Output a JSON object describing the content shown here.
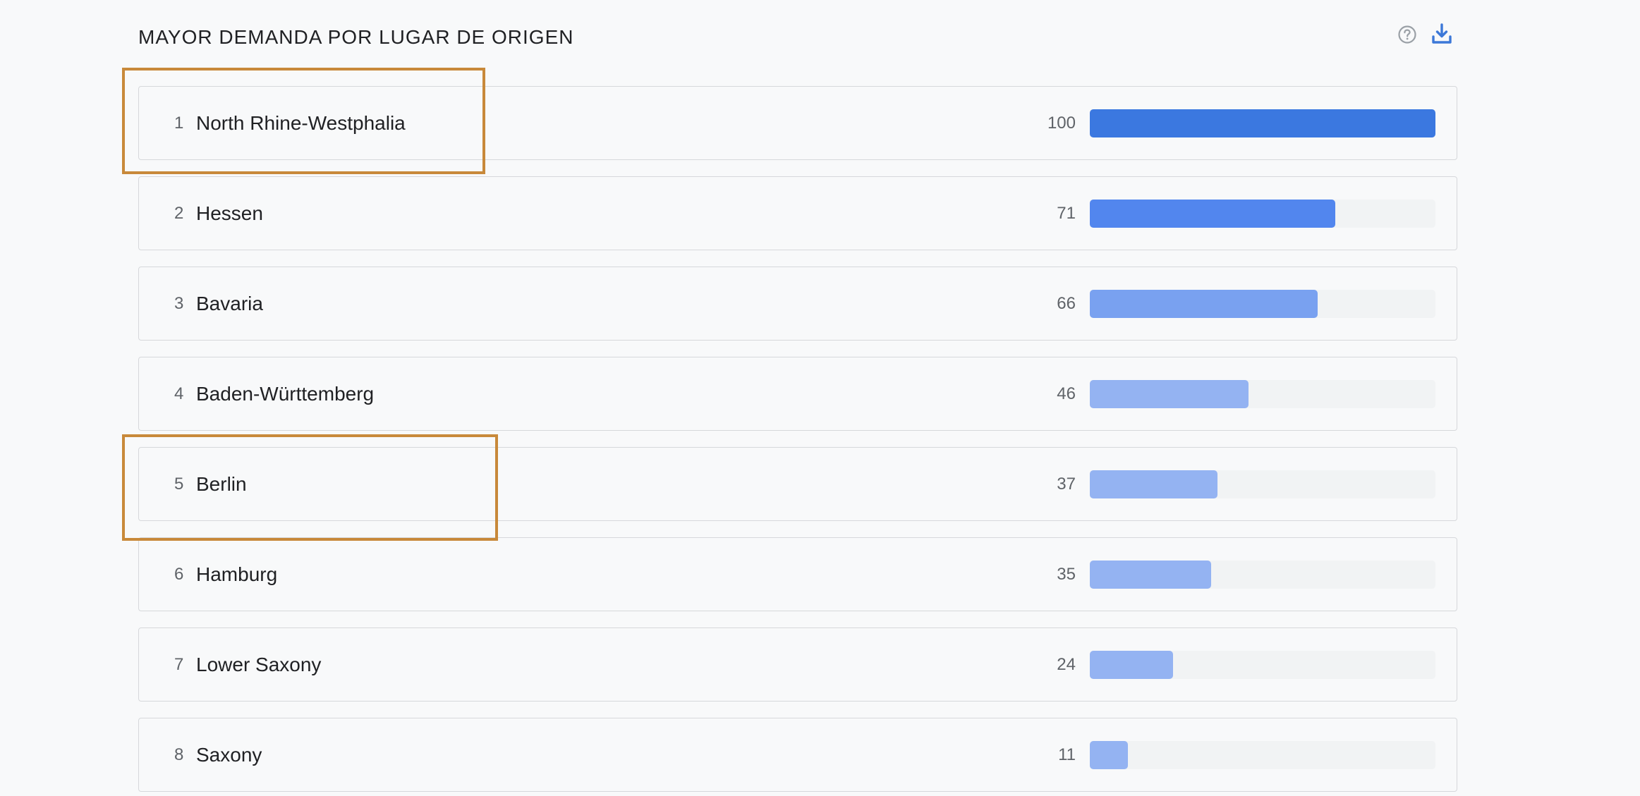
{
  "section": {
    "title": "MAYOR DEMANDA POR LUGAR DE ORIGEN",
    "help_icon": "help-circle-icon",
    "download_icon": "download-icon",
    "accent_color": "#3c78d8"
  },
  "rows": [
    {
      "rank": "1",
      "name": "North Rhine-Westphalia",
      "value": "100",
      "fraction": 1.0,
      "color": "#3b78e0"
    },
    {
      "rank": "2",
      "name": "Hessen",
      "value": "71",
      "fraction": 0.71,
      "color": "#5286ee"
    },
    {
      "rank": "3",
      "name": "Bavaria",
      "value": "66",
      "fraction": 0.66,
      "color": "#79a1f0"
    },
    {
      "rank": "4",
      "name": "Baden-Württemberg",
      "value": "46",
      "fraction": 0.46,
      "color": "#94b3f2"
    },
    {
      "rank": "5",
      "name": "Berlin",
      "value": "37",
      "fraction": 0.37,
      "color": "#94b3f2"
    },
    {
      "rank": "6",
      "name": "Hamburg",
      "value": "35",
      "fraction": 0.35,
      "color": "#94b3f2"
    },
    {
      "rank": "7",
      "name": "Lower Saxony",
      "value": "24",
      "fraction": 0.24,
      "color": "#94b3f2"
    },
    {
      "rank": "8",
      "name": "Saxony",
      "value": "11",
      "fraction": 0.11,
      "color": "#94b3f2"
    }
  ],
  "annotations": {
    "color": "#c8893a",
    "highlighted_ranks": [
      "1",
      "5"
    ]
  }
}
